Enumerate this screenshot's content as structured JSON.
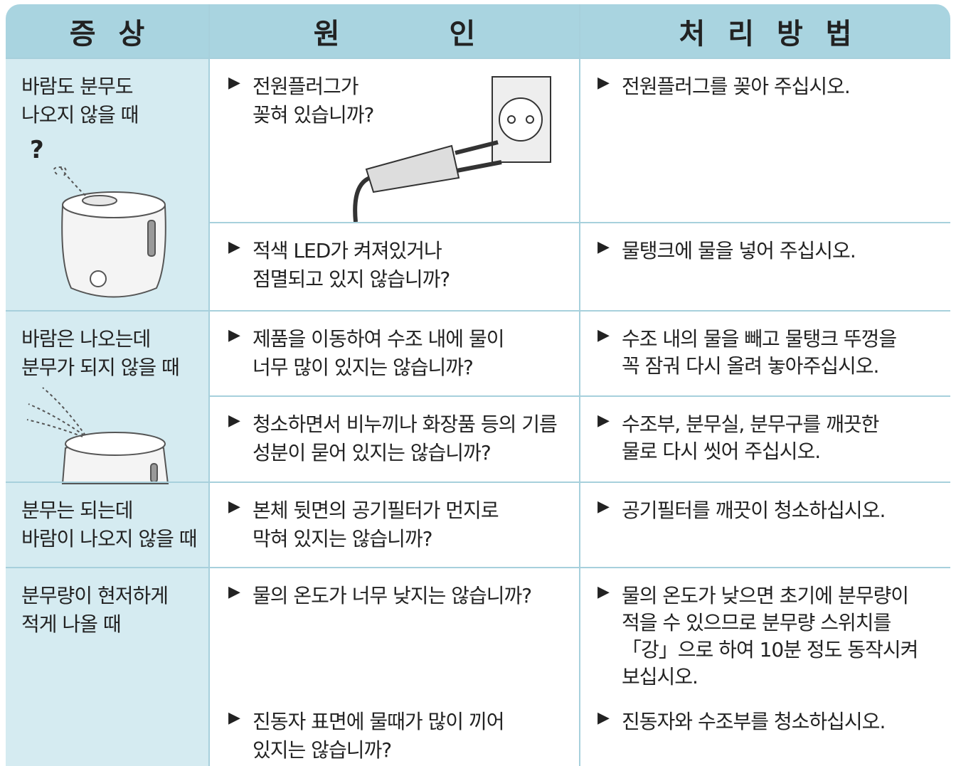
{
  "header": [
    "증 상",
    "원 인",
    "처 리 방 법"
  ],
  "rows": [
    {
      "symptom": [
        "바람도 분무도",
        "나오지 않을 때"
      ],
      "items": [
        {
          "cause": [
            "전원플러그가",
            "꽂혀 있습니까?"
          ],
          "fix": [
            "전원플러그를 꽂아 주십시오."
          ]
        },
        {
          "cause": [
            "적색 LED가 켜져있거나",
            "점멸되고 있지 않습니까?"
          ],
          "fix": [
            "물탱크에 물을 넣어 주십시오."
          ]
        }
      ]
    },
    {
      "symptom": [
        "바람은 나오는데",
        "분무가 되지 않을 때"
      ],
      "items": [
        {
          "cause": [
            "제품을 이동하여 수조 내에 물이",
            "너무 많이 있지는 않습니까?"
          ],
          "fix": [
            "수조 내의 물을 빼고 물탱크 뚜껑을",
            "꼭 잠궈 다시 올려 놓아주십시오."
          ]
        },
        {
          "cause": [
            "청소하면서 비누끼나 화장품 등의 기름",
            "성분이 묻어 있지는 않습니까?"
          ],
          "fix": [
            "수조부, 분무실, 분무구를 깨끗한",
            "물로 다시 씻어 주십시오."
          ]
        }
      ]
    },
    {
      "symptom": [
        "분무는 되는데",
        "바람이 나오지 않을 때"
      ],
      "items": [
        {
          "cause": [
            "본체 뒷면의 공기필터가 먼지로",
            "막혀 있지는 않습니까?"
          ],
          "fix": [
            "공기필터를 깨끗이 청소하십시오."
          ]
        }
      ]
    },
    {
      "symptom": [
        "분무량이 현저하게",
        "적게 나올 때"
      ],
      "items": [
        {
          "cause": [
            "물의 온도가 너무 낮지는 않습니까?"
          ],
          "fix": [
            "물의 온도가 낮으면 초기에 분무량이",
            "적을 수 있으므로 분무량 스위치를",
            "「강」으로 하여 10분 정도 동작시켜",
            "보십시오."
          ]
        },
        {
          "cause": [
            "진동자 표면에 물때가 많이 끼어",
            "있지는 않습니까?"
          ],
          "fix": [
            "진동자와 수조부를 청소하십시오."
          ]
        }
      ]
    }
  ]
}
